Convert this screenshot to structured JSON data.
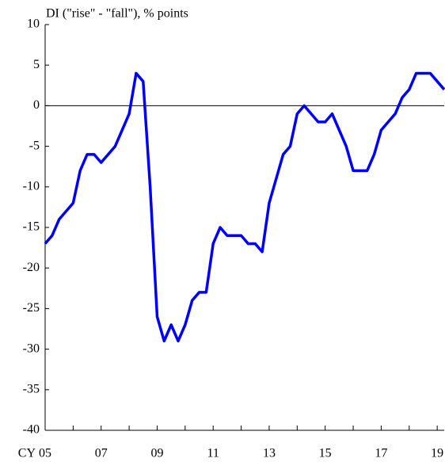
{
  "chart_data": {
    "type": "line",
    "ylabel": "DI (\"rise\" - \"fall\"), % points",
    "x_prefix": "CY",
    "x": [
      2005,
      2005.25,
      2005.5,
      2005.75,
      2006,
      2006.25,
      2006.5,
      2006.75,
      2007,
      2007.25,
      2007.5,
      2007.75,
      2008,
      2008.25,
      2008.5,
      2008.75,
      2009,
      2009.25,
      2009.5,
      2009.75,
      2010,
      2010.25,
      2010.5,
      2010.75,
      2011,
      2011.25,
      2011.5,
      2011.75,
      2012,
      2012.25,
      2012.5,
      2012.75,
      2013,
      2013.25,
      2013.5,
      2013.75,
      2014,
      2014.25,
      2014.5,
      2014.75,
      2015,
      2015.25,
      2015.5,
      2015.75,
      2016,
      2016.25,
      2016.5,
      2016.75,
      2017,
      2017.25,
      2017.5,
      2017.75,
      2018,
      2018.25,
      2018.5,
      2018.75,
      2019,
      2019.25
    ],
    "series": [
      {
        "color": "#0000ff",
        "values": [
          -17,
          -16,
          -14,
          -13,
          -12,
          -8,
          -6,
          -6,
          -7,
          -6,
          -5,
          -3,
          -1,
          4,
          3,
          -10,
          -26,
          -29,
          -27,
          -29,
          -27,
          -24,
          -23,
          -23,
          -17,
          -15,
          -16,
          -16,
          -16,
          -17,
          -17,
          -18,
          -12,
          -9,
          -6,
          -5,
          -1,
          0,
          -1,
          -2,
          -2,
          -1,
          -3,
          -5,
          -8,
          -8,
          -8,
          -6,
          -3,
          -2,
          -1,
          1,
          2,
          4,
          4,
          4,
          3,
          2
        ]
      }
    ],
    "xlim": [
      2005,
      2019.25
    ],
    "xticks": [
      {
        "value": 2005,
        "label": "05"
      },
      {
        "value": 2007,
        "label": "07"
      },
      {
        "value": 2009,
        "label": "09"
      },
      {
        "value": 2011,
        "label": "11"
      },
      {
        "value": 2013,
        "label": "13"
      },
      {
        "value": 2015,
        "label": "15"
      },
      {
        "value": 2017,
        "label": "17"
      },
      {
        "value": 2019,
        "label": "19"
      }
    ],
    "xminorticks": [
      2006,
      2008,
      2010,
      2012,
      2014,
      2016,
      2018
    ],
    "ylim": [
      -40,
      10
    ],
    "yticks": [
      -40,
      -35,
      -30,
      -25,
      -20,
      -15,
      -10,
      -5,
      0,
      5,
      10
    ],
    "zero_line": 0
  }
}
